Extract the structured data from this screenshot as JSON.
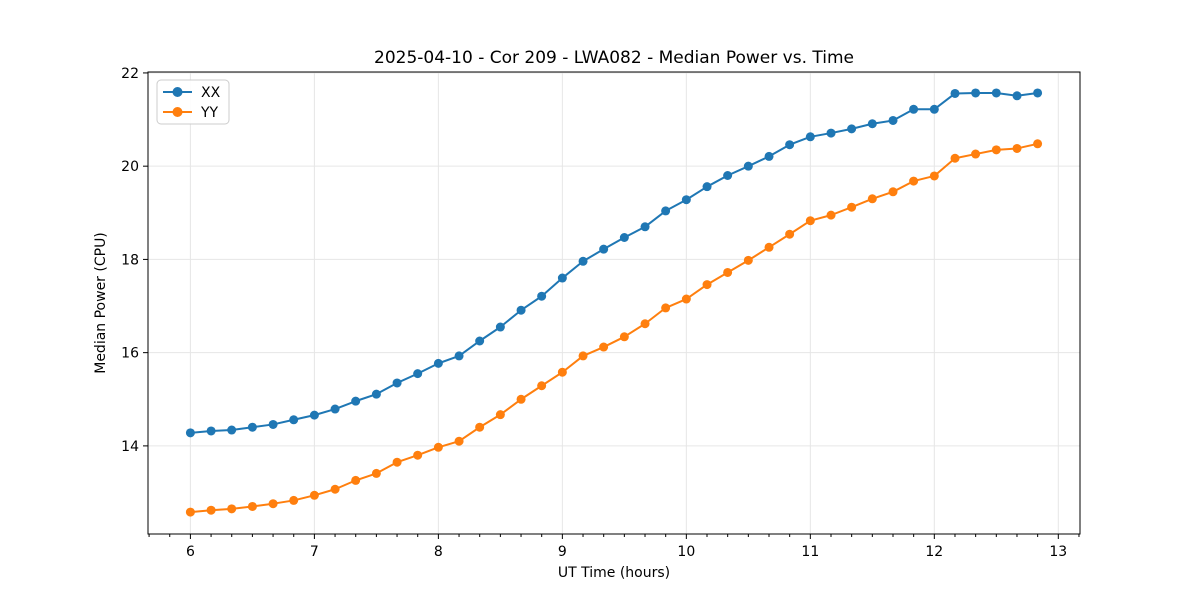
{
  "chart_data": {
    "type": "line",
    "title": "2025-04-10 - Cor 209 - LWA082 - Median Power vs. Time",
    "xlabel": "UT Time (hours)",
    "ylabel": "Median Power (CPU)",
    "xlim": [
      5.658,
      13.175
    ],
    "ylim": [
      12.11,
      22.02
    ],
    "x_major_ticks": [
      6,
      7,
      8,
      9,
      10,
      11,
      12,
      13
    ],
    "y_major_ticks": [
      14,
      16,
      18,
      20,
      22
    ],
    "x_minor_step": 0.166667,
    "grid": true,
    "legend_position": "upper-left",
    "colors": {
      "grid": "#e6e6e6",
      "spine": "#000000",
      "background": "#ffffff",
      "legend_border": "#cccccc",
      "legend_fill": "#ffffff"
    },
    "x": [
      6.0,
      6.167,
      6.333,
      6.5,
      6.667,
      6.833,
      7.0,
      7.167,
      7.333,
      7.5,
      7.667,
      7.833,
      8.0,
      8.167,
      8.333,
      8.5,
      8.667,
      8.833,
      9.0,
      9.167,
      9.333,
      9.5,
      9.667,
      9.833,
      10.0,
      10.167,
      10.333,
      10.5,
      10.667,
      10.833,
      11.0,
      11.167,
      11.333,
      11.5,
      11.667,
      11.833,
      12.0,
      12.167,
      12.333,
      12.5,
      12.667,
      12.833
    ],
    "series": [
      {
        "name": "XX",
        "color": "#1f77b4",
        "values": [
          14.28,
          14.32,
          14.34,
          14.4,
          14.46,
          14.56,
          14.66,
          14.79,
          14.96,
          15.11,
          15.35,
          15.55,
          15.77,
          15.93,
          16.25,
          16.55,
          16.91,
          17.21,
          17.6,
          17.96,
          18.22,
          18.47,
          18.7,
          19.04,
          19.28,
          19.56,
          19.8,
          20.0,
          20.21,
          20.46,
          20.63,
          20.71,
          20.8,
          20.91,
          20.98,
          21.22,
          21.22,
          21.56,
          21.57,
          21.57,
          21.51,
          21.57
        ]
      },
      {
        "name": "YY",
        "color": "#ff7f0e",
        "values": [
          12.58,
          12.62,
          12.65,
          12.7,
          12.76,
          12.83,
          12.94,
          13.07,
          13.26,
          13.41,
          13.65,
          13.8,
          13.97,
          14.1,
          14.4,
          14.67,
          15.0,
          15.29,
          15.58,
          15.93,
          16.12,
          16.34,
          16.62,
          16.96,
          17.15,
          17.46,
          17.72,
          17.98,
          18.26,
          18.54,
          18.83,
          18.95,
          19.12,
          19.3,
          19.45,
          19.68,
          19.79,
          20.17,
          20.26,
          20.35,
          20.38,
          20.48
        ]
      }
    ]
  }
}
